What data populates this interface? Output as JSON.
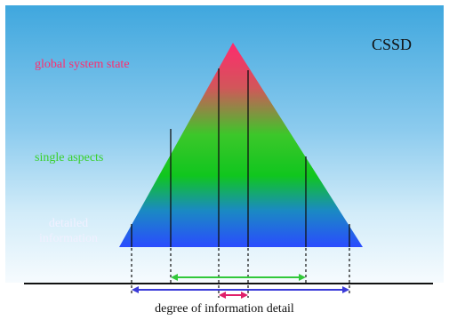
{
  "diagram": {
    "title": "CSSD",
    "levels": {
      "global": "global system state",
      "single": "single aspects",
      "detailed": "detailed information"
    },
    "axis_label": "degree of information detail",
    "colors": {
      "top": "#ff2a6e",
      "middle": "#1fd11a",
      "bottom": "#2a5cff",
      "range_wide": "#3b3bd9",
      "range_mid": "#32c83a",
      "range_narrow": "#e0206a"
    }
  }
}
